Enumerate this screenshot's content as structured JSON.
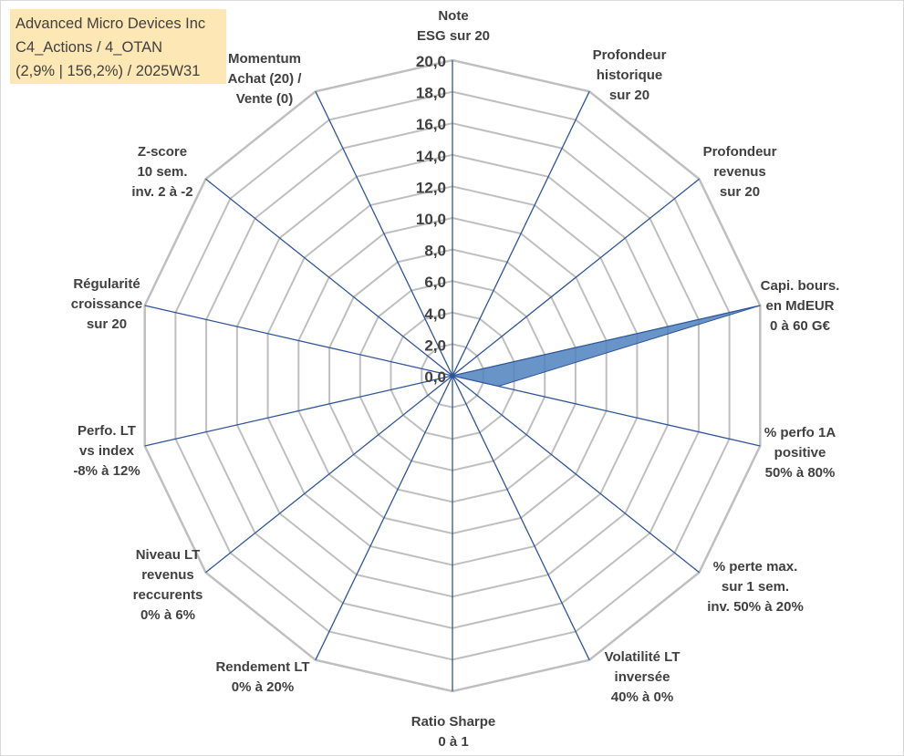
{
  "info": {
    "line1": "Advanced Micro Devices Inc",
    "line2": "C4_Actions / 4_OTAN",
    "line3": "(2,9% | 156,2%) / 2025W31"
  },
  "colors": {
    "grid": "#bfbfbf",
    "spoke": "#2f5597",
    "fill": "#4f81bd",
    "fill_stroke": "#2f5597",
    "info_bg": "#fde7b4"
  },
  "chart_data": {
    "type": "radar",
    "rlim": [
      0,
      20
    ],
    "tick_step": 2,
    "tick_labels": [
      "0,0",
      "2,0",
      "4,0",
      "6,0",
      "8,0",
      "10,0",
      "12,0",
      "14,0",
      "16,0",
      "18,0",
      "20,0"
    ],
    "axes": [
      {
        "label": "Note\nESG sur 20"
      },
      {
        "label": "Profondeur\nhistorique\nsur 20"
      },
      {
        "label": "Profondeur\nrevenus\nsur 20"
      },
      {
        "label": "Capi. bours.\nen MdEUR\n0 à 60 G€"
      },
      {
        "label": "% perfo 1A\npositive\n50% à 80%"
      },
      {
        "label": "% perte max.\nsur 1 sem.\ninv. 50% à 20%"
      },
      {
        "label": "Volatilité LT\ninversée\n40% à 0%"
      },
      {
        "label": "Ratio Sharpe\n0 à 1"
      },
      {
        "label": "Rendement LT\n0% à 20%"
      },
      {
        "label": "Niveau LT\nrevenus\nreccurents\n0% à 6%"
      },
      {
        "label": "Perfo. LT\nvs index\n-8% à 12%"
      },
      {
        "label": "Régularité\ncroissance\nsur 20"
      },
      {
        "label": "Z-score\n10 sem.\ninv. 2 à -2"
      },
      {
        "label": "Momentum\nAchat (20) /\nVente (0)"
      }
    ],
    "series": [
      {
        "values": [
          0,
          0,
          0,
          20,
          3,
          0,
          0,
          0,
          0,
          0,
          0,
          0,
          0,
          0
        ]
      }
    ]
  }
}
